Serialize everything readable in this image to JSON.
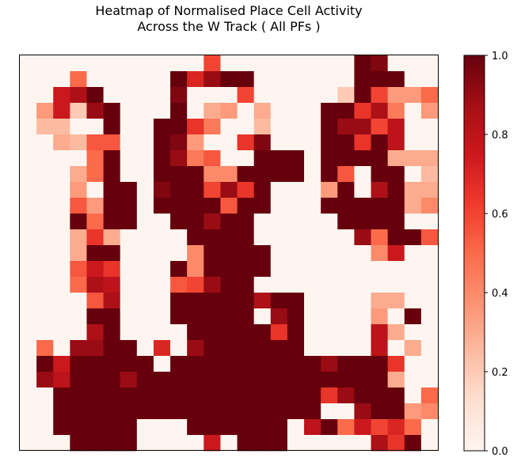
{
  "chart_data": {
    "type": "heatmap",
    "title_lines": [
      "Heatmap of Normalised Place Cell Activity",
      "Across the W Track ( All PFs )"
    ],
    "xlabel": "",
    "ylabel": "",
    "colormap": "Reds",
    "colormap_stops": [
      "#fff5f0",
      "#fee0d2",
      "#fcbba1",
      "#fc9272",
      "#fb6a4a",
      "#ef3b2c",
      "#cb181d",
      "#a50f15",
      "#67000d"
    ],
    "vmin": 0,
    "vmax": 1,
    "colorbar_ticks": [
      0.0,
      0.2,
      0.4,
      0.6,
      0.8,
      1.0
    ],
    "colorbar_tick_labels": [
      "0.0",
      "0.2",
      "0.4",
      "0.6",
      "0.8",
      "1.0"
    ],
    "rows": 25,
    "cols": 25,
    "grid": false,
    "values": [
      [
        0,
        0,
        0,
        0,
        0,
        0,
        0,
        0,
        0,
        0,
        0,
        0.6,
        0,
        0,
        0,
        0,
        0,
        0,
        0,
        0,
        1,
        0.95,
        0,
        0,
        0
      ],
      [
        0,
        0,
        0,
        0.5,
        0,
        0,
        0,
        0,
        0,
        1,
        0.7,
        0.9,
        1,
        1,
        0,
        0,
        0,
        0,
        0,
        0,
        1,
        1,
        1,
        0,
        0
      ],
      [
        0,
        0,
        0.75,
        0.85,
        1,
        0,
        0,
        0,
        0,
        0.95,
        0,
        0,
        0,
        0.6,
        0,
        0,
        0,
        0,
        0,
        0.2,
        1,
        0.6,
        0.35,
        0.35,
        0.5
      ],
      [
        0,
        0.35,
        0.75,
        0.2,
        0.9,
        1,
        0,
        0,
        0,
        1,
        0,
        0.3,
        0.35,
        0,
        0.3,
        0,
        0,
        0,
        1,
        1,
        0.65,
        0.85,
        0.45,
        0,
        0.35
      ],
      [
        0,
        0.25,
        0.25,
        0,
        0,
        1,
        0,
        0,
        1,
        1,
        0.65,
        0.45,
        0,
        0,
        0.25,
        0,
        0,
        0,
        1,
        0.9,
        0.9,
        0.6,
        0.8,
        0,
        0
      ],
      [
        0,
        0,
        0.3,
        0.25,
        0.55,
        0.55,
        0,
        0,
        1,
        0.95,
        0.35,
        0,
        0,
        0.65,
        0.95,
        0,
        0,
        0,
        1,
        1,
        0.65,
        1,
        0.8,
        0,
        0
      ],
      [
        0,
        0,
        0,
        0,
        0.5,
        1,
        0,
        0,
        1,
        0.9,
        0.45,
        0.55,
        0,
        0,
        1,
        1,
        1,
        0,
        1,
        1,
        1,
        1,
        0.3,
        0.3,
        0.3
      ],
      [
        0,
        0,
        0,
        0.3,
        0.5,
        1,
        0,
        0,
        1,
        1,
        1,
        0.4,
        0.4,
        1,
        1,
        1,
        1,
        0,
        1,
        0.55,
        0,
        1,
        1,
        0,
        0.25
      ],
      [
        0,
        0,
        0,
        0.35,
        0,
        1,
        1,
        0,
        0.95,
        1,
        1,
        0.6,
        0.9,
        0.65,
        1,
        0,
        0,
        0,
        0.35,
        1,
        0,
        0.85,
        1,
        0.3,
        0.3
      ],
      [
        0,
        0,
        0,
        0.55,
        0.35,
        1,
        1,
        0,
        1,
        1,
        1,
        1,
        0.55,
        1,
        1,
        0,
        0,
        0,
        1,
        1,
        1,
        1,
        1,
        0.3,
        0.4
      ],
      [
        0,
        0,
        0,
        1,
        0.5,
        1,
        1,
        0,
        0,
        1,
        1,
        0.9,
        1,
        1,
        0,
        0,
        0,
        0,
        0,
        1,
        1,
        1,
        1,
        0,
        0
      ],
      [
        0,
        0,
        0,
        0.3,
        0.65,
        0.3,
        0,
        0,
        0,
        0,
        1,
        1,
        1,
        1,
        0,
        0,
        0,
        0,
        0,
        0,
        0.9,
        0.5,
        1,
        1,
        0.55
      ],
      [
        0,
        0,
        0,
        0.3,
        1,
        1,
        0,
        0,
        0,
        0,
        0.4,
        1,
        1,
        1,
        1,
        0,
        0,
        0,
        0,
        0,
        0,
        0.4,
        0.75,
        0,
        0
      ],
      [
        0,
        0,
        0,
        0.55,
        0.75,
        0.65,
        0,
        0,
        0,
        1,
        0.4,
        1,
        1,
        1,
        1,
        0,
        0,
        0,
        0,
        0,
        0,
        0,
        0,
        0,
        0
      ],
      [
        0,
        0,
        0,
        0.5,
        0.85,
        0.8,
        0,
        0,
        0,
        0.55,
        0.6,
        0.9,
        1,
        1,
        0,
        0,
        0,
        0,
        0,
        0,
        0,
        0,
        0,
        0,
        0
      ],
      [
        0,
        0,
        0,
        0,
        0.55,
        0.85,
        0,
        0,
        0,
        1,
        1,
        1,
        1,
        1,
        0.85,
        1,
        1,
        0,
        0,
        0,
        0,
        0.3,
        0.3,
        0,
        0
      ],
      [
        0,
        0,
        0,
        0,
        1,
        1,
        0,
        0,
        0,
        1,
        1,
        1,
        1,
        1,
        0,
        0.9,
        1,
        0,
        0,
        0,
        0,
        0.35,
        0,
        1,
        0
      ],
      [
        0,
        0,
        0,
        0,
        0.85,
        1,
        0,
        0,
        0,
        0,
        1,
        1,
        1,
        1,
        1,
        0.65,
        1,
        0,
        0,
        0,
        0,
        0.8,
        0.3,
        0,
        0
      ],
      [
        0,
        0.5,
        0,
        0.9,
        0.9,
        1,
        1,
        0,
        0.7,
        0,
        0.9,
        1,
        1,
        1,
        1,
        1,
        1,
        0,
        0,
        0,
        0,
        0.8,
        0,
        0.3,
        0
      ],
      [
        0,
        1,
        0.75,
        1,
        1,
        1,
        1,
        1,
        0,
        1,
        1,
        1,
        1,
        1,
        1,
        1,
        1,
        1,
        0.9,
        1,
        1,
        1,
        0.65,
        0,
        0
      ],
      [
        0,
        0.9,
        0.8,
        1,
        1,
        1,
        0.9,
        1,
        1,
        1,
        1,
        1,
        1,
        1,
        1,
        1,
        1,
        1,
        1,
        1,
        1,
        1,
        0.3,
        0,
        0
      ],
      [
        0,
        0,
        1,
        1,
        1,
        1,
        1,
        1,
        1,
        1,
        1,
        1,
        1,
        1,
        1,
        1,
        1,
        1,
        0.65,
        0.9,
        1,
        1,
        1,
        0,
        0.5
      ],
      [
        0,
        0,
        1,
        1,
        1,
        1,
        1,
        1,
        1,
        1,
        1,
        1,
        1,
        1,
        1,
        1,
        1,
        1,
        0,
        0,
        0.9,
        1,
        1,
        0.35,
        0.4
      ],
      [
        0,
        0,
        1,
        1,
        1,
        1,
        1,
        0,
        0,
        0,
        1,
        1,
        1,
        1,
        1,
        1,
        0,
        0.8,
        1,
        0.5,
        0.75,
        0.6,
        0.7,
        0.5,
        0
      ],
      [
        0,
        0,
        0,
        1,
        1,
        1,
        1,
        0,
        0,
        0,
        0,
        0.75,
        0,
        1,
        1,
        1,
        0,
        0,
        0,
        0,
        0,
        0.85,
        0.65,
        1,
        0
      ]
    ]
  }
}
